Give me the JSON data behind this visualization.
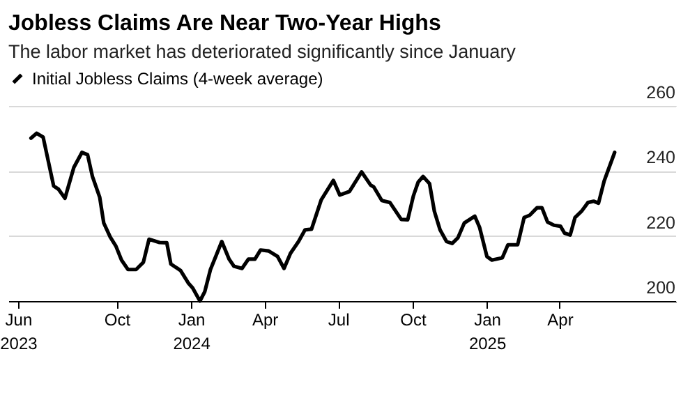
{
  "chart_data": {
    "type": "line",
    "title": "Jobless Claims Are Near Two-Year Highs",
    "subtitle": "The labor market has deteriorated significantly since January",
    "x": [
      "2023-06-17",
      "2023-06-24",
      "2023-07-02",
      "2023-07-15",
      "2023-07-21",
      "2023-07-29",
      "2023-08-09",
      "2023-08-19",
      "2023-08-26",
      "2023-09-01",
      "2023-09-10",
      "2023-09-15",
      "2023-09-23",
      "2023-09-30",
      "2023-10-07",
      "2023-10-15",
      "2023-10-25",
      "2023-11-03",
      "2023-11-10",
      "2023-11-23",
      "2023-12-02",
      "2023-12-07",
      "2023-12-19",
      "2023-12-29",
      "2024-01-03",
      "2024-01-12",
      "2024-01-18",
      "2024-01-25",
      "2024-02-01",
      "2024-02-08",
      "2024-02-17",
      "2024-02-23",
      "2024-03-04",
      "2024-03-12",
      "2024-03-20",
      "2024-03-27",
      "2024-04-06",
      "2024-04-17",
      "2024-04-25",
      "2024-05-03",
      "2024-05-13",
      "2024-05-21",
      "2024-05-29",
      "2024-06-10",
      "2024-06-25",
      "2024-07-03",
      "2024-07-15",
      "2024-07-30",
      "2024-08-10",
      "2024-08-14",
      "2024-08-24",
      "2024-09-03",
      "2024-09-17",
      "2024-09-25",
      "2024-10-02",
      "2024-10-08",
      "2024-10-14",
      "2024-10-22",
      "2024-10-28",
      "2024-11-04",
      "2024-11-12",
      "2024-11-19",
      "2024-11-26",
      "2024-12-04",
      "2024-12-17",
      "2024-12-23",
      "2025-01-01",
      "2025-01-07",
      "2025-01-20",
      "2025-01-27",
      "2025-02-08",
      "2025-02-16",
      "2025-02-23",
      "2025-03-04",
      "2025-03-10",
      "2025-03-17",
      "2025-03-25",
      "2025-04-02",
      "2025-04-07",
      "2025-04-14",
      "2025-04-20",
      "2025-04-28",
      "2025-05-06",
      "2025-05-13",
      "2025-05-19",
      "2025-05-26",
      "2025-06-08"
    ],
    "series": [
      {
        "name": "Initial Jobless Claims (4-week average)",
        "color": "#000000",
        "values": [
          250.1,
          251.6,
          250.4,
          235.4,
          234.4,
          231.6,
          241.1,
          245.7,
          245,
          238.3,
          231.9,
          224,
          219.7,
          216.9,
          212.6,
          209.7,
          209.7,
          211.9,
          219,
          218,
          217.9,
          211.4,
          209.4,
          205.4,
          204,
          200,
          202.9,
          209.7,
          214,
          218.3,
          212.9,
          210.7,
          210,
          212.9,
          212.9,
          215.7,
          215.4,
          213.7,
          210,
          214.7,
          218.3,
          221.9,
          222.1,
          231.1,
          237.1,
          232.6,
          233.7,
          239.7,
          235.7,
          235.1,
          230.9,
          230.3,
          225.1,
          225,
          232.3,
          236.6,
          238.3,
          236.1,
          227.6,
          221.9,
          218.3,
          217.7,
          219.4,
          224,
          226.1,
          222.6,
          213.7,
          212.6,
          213.3,
          217.3,
          217.3,
          225.7,
          226.4,
          228.7,
          228.7,
          224.3,
          223.3,
          223,
          220.9,
          220.3,
          225.7,
          227.6,
          230.3,
          230.7,
          230.1,
          236.9,
          245.7
        ]
      }
    ],
    "xlim": [
      "2023-05-20",
      "2025-08-23"
    ],
    "xticks": [
      {
        "value": "2023-06-01",
        "label": "Jun\n2023"
      },
      {
        "value": "2023-10-01",
        "label": "Oct"
      },
      {
        "value": "2024-01-01",
        "label": "Jan\n2024"
      },
      {
        "value": "2024-04-01",
        "label": "Apr"
      },
      {
        "value": "2024-07-01",
        "label": "Jul"
      },
      {
        "value": "2024-10-01",
        "label": "Oct"
      },
      {
        "value": "2025-01-01",
        "label": "Jan\n2025"
      },
      {
        "value": "2025-04-01",
        "label": "Apr"
      }
    ],
    "ylim": [
      200,
      260
    ],
    "yticks": [
      200,
      220,
      240,
      260
    ],
    "grid": "y",
    "legend": "top left"
  }
}
